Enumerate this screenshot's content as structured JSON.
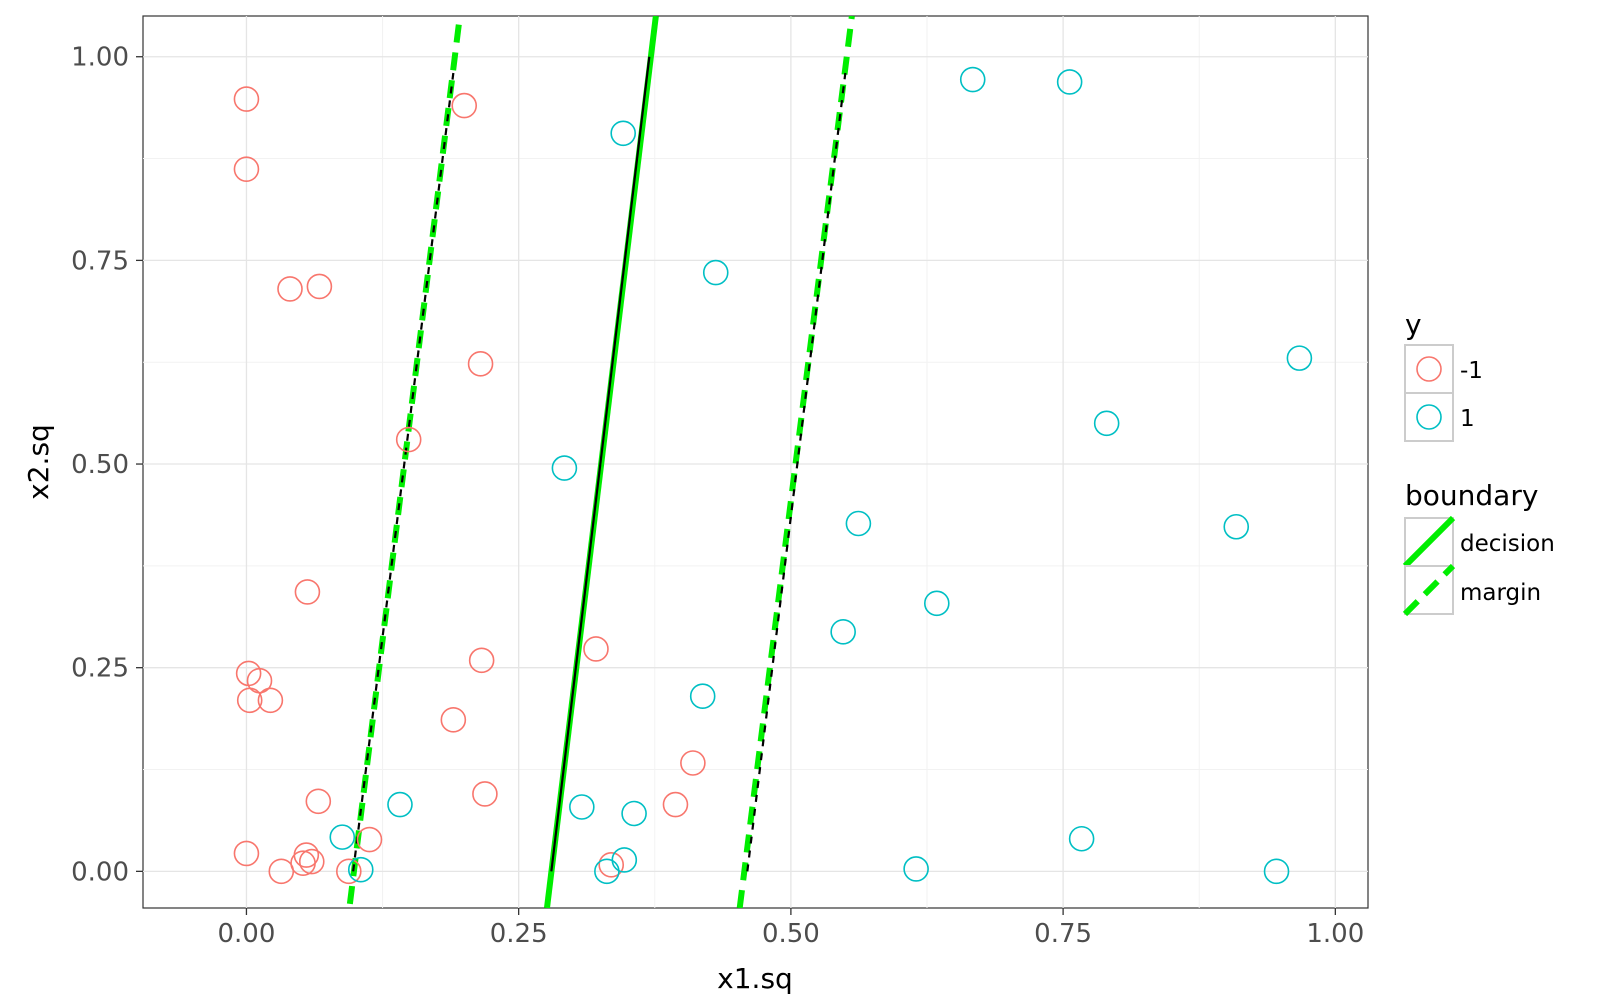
{
  "chart_data": {
    "type": "scatter",
    "xlabel": "x1.sq",
    "ylabel": "x2.sq",
    "xlim": [
      -0.095,
      1.03
    ],
    "ylim": [
      -0.045,
      1.05
    ],
    "x_ticks": [
      "0.00",
      "0.25",
      "0.50",
      "0.75",
      "1.00"
    ],
    "x_tick_values": [
      0,
      0.25,
      0.5,
      0.75,
      1.0
    ],
    "y_ticks": [
      "0.00",
      "0.25",
      "0.50",
      "0.75",
      "1.00"
    ],
    "y_tick_values": [
      0,
      0.25,
      0.5,
      0.75,
      1.0
    ],
    "grid": true,
    "legend_position": "right",
    "series": [
      {
        "name": "-1",
        "color": "#F8766D",
        "marker": "open-circle",
        "points": [
          [
            0.0,
            0.948
          ],
          [
            0.0,
            0.862
          ],
          [
            0.04,
            0.715
          ],
          [
            0.067,
            0.718
          ],
          [
            0.2,
            0.94
          ],
          [
            0.215,
            0.623
          ],
          [
            0.149,
            0.53
          ],
          [
            0.056,
            0.343
          ],
          [
            0.002,
            0.243
          ],
          [
            0.012,
            0.234
          ],
          [
            0.003,
            0.21
          ],
          [
            0.022,
            0.21
          ],
          [
            0.216,
            0.259
          ],
          [
            0.19,
            0.186
          ],
          [
            0.321,
            0.273
          ],
          [
            0.066,
            0.086
          ],
          [
            0.219,
            0.095
          ],
          [
            0.41,
            0.133
          ],
          [
            0.394,
            0.082
          ],
          [
            0.113,
            0.039
          ],
          [
            0.0,
            0.022
          ],
          [
            0.055,
            0.02
          ],
          [
            0.052,
            0.01
          ],
          [
            0.06,
            0.012
          ],
          [
            0.032,
            0.0
          ],
          [
            0.094,
            0.0
          ],
          [
            0.335,
            0.008
          ]
        ]
      },
      {
        "name": "1",
        "color": "#00BFC4",
        "marker": "open-circle",
        "points": [
          [
            0.667,
            0.972
          ],
          [
            0.756,
            0.969
          ],
          [
            0.346,
            0.906
          ],
          [
            0.431,
            0.735
          ],
          [
            0.967,
            0.63
          ],
          [
            0.79,
            0.55
          ],
          [
            0.292,
            0.495
          ],
          [
            0.562,
            0.427
          ],
          [
            0.909,
            0.423
          ],
          [
            0.634,
            0.329
          ],
          [
            0.548,
            0.294
          ],
          [
            0.419,
            0.215
          ],
          [
            0.141,
            0.082
          ],
          [
            0.308,
            0.079
          ],
          [
            0.356,
            0.071
          ],
          [
            0.088,
            0.042
          ],
          [
            0.767,
            0.04
          ],
          [
            0.105,
            0.002
          ],
          [
            0.331,
            0.0
          ],
          [
            0.347,
            0.014
          ],
          [
            0.615,
            0.003
          ],
          [
            0.946,
            0.0
          ]
        ]
      }
    ],
    "boundary_legend": {
      "title": "boundary",
      "entries": [
        "decision",
        "margin"
      ]
    },
    "color_legend_title": "y",
    "boundary_color": "#00EE00",
    "lines": [
      {
        "kind": "decision",
        "style": "solid-green",
        "points": [
          [
            0.276,
            -0.045
          ],
          [
            0.376,
            1.05
          ]
        ]
      },
      {
        "kind": "decision",
        "style": "black-solid-overlay",
        "points": [
          [
            0.28,
            0.0
          ],
          [
            0.37,
            1.0
          ]
        ]
      },
      {
        "kind": "margin",
        "style": "dashed-green",
        "points": [
          [
            0.095,
            -0.04
          ],
          [
            0.196,
            1.05
          ]
        ]
      },
      {
        "kind": "margin",
        "style": "black-dashed-overlay",
        "points": [
          [
            0.098,
            0.0
          ],
          [
            0.19,
            0.98
          ]
        ]
      },
      {
        "kind": "margin",
        "style": "dashed-green",
        "points": [
          [
            0.453,
            -0.045
          ],
          [
            0.556,
            1.05
          ]
        ]
      },
      {
        "kind": "margin",
        "style": "black-dashed-overlay",
        "points": [
          [
            0.46,
            0.0
          ],
          [
            0.55,
            0.98
          ]
        ]
      }
    ]
  }
}
